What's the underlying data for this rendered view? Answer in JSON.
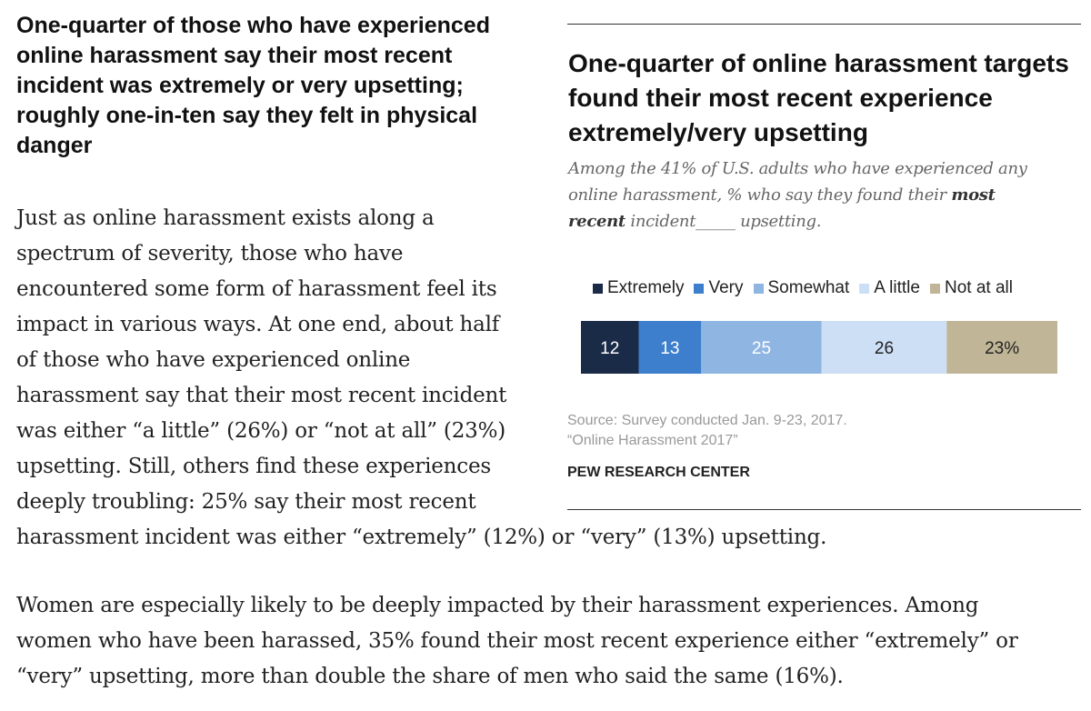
{
  "article": {
    "heading": "One-quarter of those who have experienced online harassment say their most recent incident was extremely or very upsetting; roughly one-in-ten say they felt in physical danger",
    "paragraph1_lines": [
      "Just as online harassment exists along a",
      "spectrum of severity, those who have",
      "encountered some form of harassment feel its",
      "impact in various ways. At one end, about half",
      "of those who have experienced online",
      "harassment say that their most recent incident",
      "was either “a little” (26%) or “not at all” (23%)",
      "upsetting. Still, others find these experiences",
      "deeply troubling: 25% say their most recent",
      "harassment incident was either “extremely” (12%) or “very” (13%) upsetting."
    ],
    "paragraph2_lines": [
      "Women are especially likely to be deeply impacted by their harassment experiences. Among",
      "women who have been harassed, 35% found their most recent experience either “extremely” or",
      "“very” upsetting, more than double the share of men who said the same (16%)."
    ]
  },
  "figure": {
    "subtitle": {
      "line1": "Among the 41% of U.S. adults who have experienced any",
      "line2_pre": "online harassment, % who say they found their ",
      "line2_bold": "most",
      "line3_bold": "recent",
      "line3_post": " incident_____ upsetting."
    },
    "source_lines": [
      "Source: Survey conducted Jan. 9-23, 2017.",
      "“Online Harassment 2017”"
    ],
    "organization": "PEW RESEARCH CENTER"
  },
  "chart_data": {
    "type": "bar",
    "orientation": "horizontal-stacked",
    "title": "One-quarter of online harassment targets found their most recent experience extremely/very upsetting",
    "categories": [
      "Extremely",
      "Very",
      "Somewhat",
      "A little",
      "Not at all"
    ],
    "values": [
      12,
      13,
      25,
      26,
      23
    ],
    "labels": [
      "12",
      "13",
      "25",
      "26",
      "23%"
    ],
    "colors": [
      "#1a2b48",
      "#3d7fcc",
      "#8fb5e3",
      "#cddff5",
      "#c0b596"
    ],
    "label_colors": [
      "#ffffff",
      "#ffffff",
      "#ffffff",
      "#222222",
      "#222222"
    ],
    "legend_position": "top",
    "grid": false
  }
}
